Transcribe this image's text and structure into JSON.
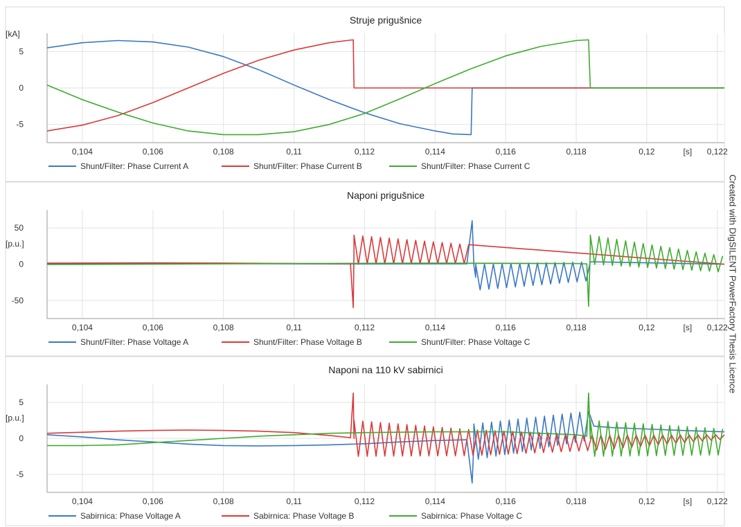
{
  "side_note": "Created with DIgSILENT PowerFactory Thesis Licence",
  "chart_data": [
    {
      "type": "line",
      "title": "Struje prigušnice",
      "ylabel": "[kA]",
      "xlabel": "[s]",
      "xlim": [
        0.103,
        0.1222
      ],
      "ylim": [
        -7.5,
        7.5
      ],
      "xticks": [
        0.104,
        0.106,
        0.108,
        0.11,
        0.112,
        0.114,
        0.116,
        0.118,
        0.12,
        0.122
      ],
      "xtick_labels": [
        "0,104",
        "0,106",
        "0,108",
        "0,11",
        "0,112",
        "0,114",
        "0,116",
        "0,118",
        "0,12",
        "0,122"
      ],
      "yticks": [
        5,
        0,
        -5
      ],
      "ytick_labels": [
        "5",
        "0",
        "-5"
      ],
      "grid": true,
      "legend": "bottom",
      "series": [
        {
          "name": "Shunt/Filter: Phase Current A",
          "color": "#3a78c2",
          "x": [
            0.103,
            0.104,
            0.105,
            0.106,
            0.107,
            0.108,
            0.109,
            0.11,
            0.111,
            0.112,
            0.113,
            0.114,
            0.1145,
            0.11502,
            0.11505,
            0.1222
          ],
          "y": [
            5.5,
            6.2,
            6.5,
            6.3,
            5.6,
            4.3,
            2.5,
            0.4,
            -1.6,
            -3.4,
            -4.9,
            -5.9,
            -6.3,
            -6.4,
            0,
            0
          ]
        },
        {
          "name": "Shunt/Filter: Phase Current B",
          "color": "#d9393a",
          "x": [
            0.103,
            0.104,
            0.105,
            0.106,
            0.107,
            0.108,
            0.109,
            0.11,
            0.111,
            0.1115,
            0.11168,
            0.1117,
            0.1222
          ],
          "y": [
            -5.9,
            -5.1,
            -3.8,
            -2.0,
            0.0,
            2.0,
            3.8,
            5.2,
            6.2,
            6.5,
            6.6,
            0,
            0
          ]
        },
        {
          "name": "Shunt/Filter: Phase Current C",
          "color": "#3eab2f",
          "x": [
            0.103,
            0.104,
            0.105,
            0.106,
            0.107,
            0.108,
            0.109,
            0.11,
            0.111,
            0.112,
            0.113,
            0.114,
            0.115,
            0.116,
            0.117,
            0.118,
            0.11835,
            0.1184,
            0.1222
          ],
          "y": [
            0.4,
            -1.6,
            -3.3,
            -4.8,
            -5.9,
            -6.4,
            -6.4,
            -6.0,
            -5.0,
            -3.5,
            -1.5,
            0.6,
            2.6,
            4.4,
            5.7,
            6.5,
            6.6,
            0,
            0
          ]
        }
      ]
    },
    {
      "type": "line",
      "title": "Naponi prigušnice",
      "ylabel": "[p.u.]",
      "xlabel": "[s]",
      "xlim": [
        0.103,
        0.1222
      ],
      "ylim": [
        -75,
        75
      ],
      "xticks": [
        0.104,
        0.106,
        0.108,
        0.11,
        0.112,
        0.114,
        0.116,
        0.118,
        0.12,
        0.122
      ],
      "xtick_labels": [
        "0,104",
        "0,106",
        "0,108",
        "0,11",
        "0,112",
        "0,114",
        "0,116",
        "0,118",
        "0,12",
        "0,122"
      ],
      "yticks": [
        50,
        0,
        -50
      ],
      "ytick_labels": [
        "50",
        "0",
        "-50"
      ],
      "grid": true,
      "legend": "bottom",
      "series": [
        {
          "name": "Shunt/Filter: Phase Voltage A",
          "color": "#3a78c2",
          "x": [
            0.103,
            0.108,
            0.11,
            0.112,
            0.114,
            0.1149,
            0.11505,
            0.1151,
            0.11515,
            0.1222
          ],
          "y": [
            0.8,
            0.8,
            0.6,
            0.4,
            0.5,
            0.5,
            60,
            -2,
            -18,
            0
          ],
          "oscillation": {
            "start": 0.11515,
            "end": 0.1184,
            "period": 0.00025,
            "from_amplitude": 18,
            "to_amplitude": 13
          }
        },
        {
          "name": "Shunt/Filter: Phase Voltage B",
          "color": "#d9393a",
          "x": [
            0.103,
            0.106,
            0.108,
            0.11,
            0.1116,
            0.11168,
            0.1117,
            0.1222
          ],
          "y": [
            1.5,
            1.8,
            1.5,
            1.0,
            0.5,
            -60,
            20,
            0
          ],
          "oscillation": {
            "start": 0.1117,
            "end": 0.115,
            "period": 0.00025,
            "from_amplitude": 20,
            "to_amplitude": 13
          }
        },
        {
          "name": "Shunt/Filter: Phase Voltage C",
          "color": "#3eab2f",
          "x": [
            0.103,
            0.106,
            0.108,
            0.11,
            0.114,
            0.118,
            0.1183,
            0.11835,
            0.1184,
            0.1222
          ],
          "y": [
            -0.5,
            0,
            0.5,
            1,
            1.5,
            1,
            0.5,
            -58,
            20,
            0
          ],
          "oscillation": {
            "start": 0.1184,
            "end": 0.1222,
            "period": 0.00025,
            "from_amplitude": 20,
            "to_amplitude": 11
          }
        }
      ]
    },
    {
      "type": "line",
      "title": "Naponi na 110 kV sabirnici",
      "ylabel": "[p.u.]",
      "xlabel": "[s]",
      "xlim": [
        0.103,
        0.1222
      ],
      "ylim": [
        -7.5,
        7.5
      ],
      "xticks": [
        0.104,
        0.106,
        0.108,
        0.11,
        0.112,
        0.114,
        0.116,
        0.118,
        0.12,
        0.122
      ],
      "xtick_labels": [
        "0,104",
        "0,106",
        "0,108",
        "0,11",
        "0,112",
        "0,114",
        "0,116",
        "0,118",
        "0,12",
        "0,122"
      ],
      "yticks": [
        5,
        0,
        -5
      ],
      "ytick_labels": [
        "5",
        "0",
        "-5"
      ],
      "grid": true,
      "legend": "bottom",
      "series": [
        {
          "name": "Sabirnica: Phase Voltage A",
          "color": "#3a78c2",
          "x": [
            0.103,
            0.104,
            0.105,
            0.106,
            0.107,
            0.108,
            0.109,
            0.11,
            0.111,
            0.112,
            0.113,
            0.114,
            0.1149,
            0.11505,
            0.1151,
            0.1184,
            0.1185,
            0.119,
            0.12,
            0.121,
            0.1222
          ],
          "y": [
            0.5,
            0.2,
            -0.2,
            -0.5,
            -0.8,
            -1.0,
            -1.05,
            -1.0,
            -0.9,
            -0.75,
            -0.5,
            -0.3,
            -0.2,
            -6.2,
            -0.5,
            1.8,
            1.7,
            1.5,
            1.3,
            1.1,
            0.9
          ],
          "oscillation": {
            "start": 0.1151,
            "end": 0.1184,
            "period": 0.00025,
            "from_amplitude": 2.5,
            "to_amplitude": 2.0
          }
        },
        {
          "name": "Sabirnica: Phase Voltage B",
          "color": "#d9393a",
          "x": [
            0.103,
            0.104,
            0.105,
            0.106,
            0.107,
            0.108,
            0.109,
            0.11,
            0.111,
            0.1116,
            0.11168,
            0.1117,
            0.115,
            0.1184,
            0.12,
            0.1222
          ],
          "y": [
            0.7,
            0.85,
            1.0,
            1.1,
            1.15,
            1.1,
            1.0,
            0.8,
            0.4,
            0.1,
            6.3,
            0,
            -0.6,
            -0.6,
            -0.3,
            0.2
          ],
          "oscillation": {
            "start": 0.1117,
            "end": 0.1222,
            "period": 0.00025,
            "from_amplitude": 2.5,
            "to_amplitude": 0.3
          }
        },
        {
          "name": "Sabirnica: Phase Voltage C",
          "color": "#3eab2f",
          "x": [
            0.103,
            0.104,
            0.105,
            0.106,
            0.107,
            0.108,
            0.109,
            0.11,
            0.111,
            0.112,
            0.114,
            0.116,
            0.118,
            0.1183,
            0.11835,
            0.1184,
            0.1222
          ],
          "y": [
            -1.0,
            -1.0,
            -0.9,
            -0.6,
            -0.3,
            0.0,
            0.3,
            0.5,
            0.7,
            0.8,
            0.9,
            0.9,
            0.5,
            0.3,
            6.3,
            0,
            -0.5
          ],
          "oscillation": {
            "start": 0.1184,
            "end": 0.1222,
            "period": 0.00025,
            "from_amplitude": 2.5,
            "to_amplitude": 1.8
          }
        }
      ]
    }
  ]
}
